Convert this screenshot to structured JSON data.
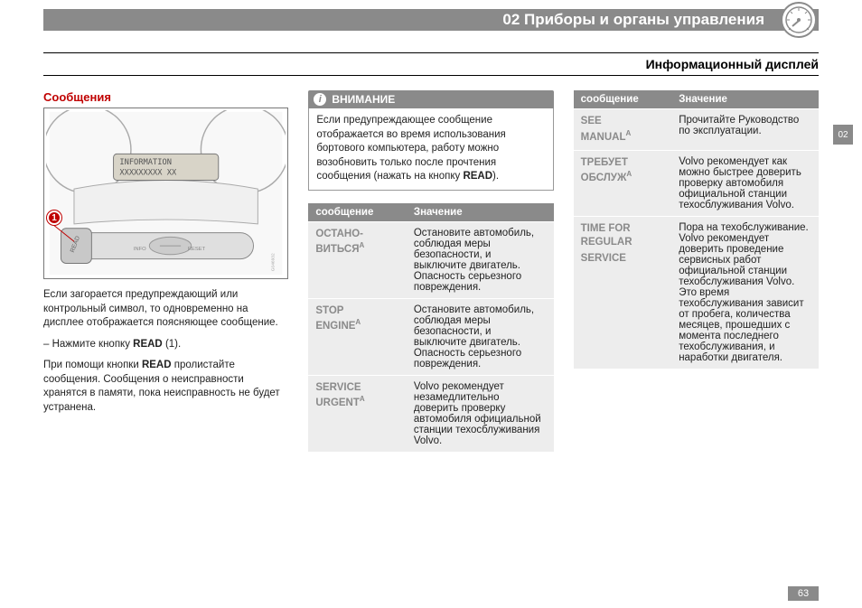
{
  "header": {
    "chapter": "02 Приборы и органы управления",
    "subheader": "Информационный дисплей"
  },
  "sideTab": "02",
  "pageNumber": "63",
  "column1": {
    "heading": "Сообщения",
    "badge": "1",
    "displayText": "INFORMATION",
    "para1": "Если загорается предупреждающий или контрольный символ, то одновременно на дисплее отображается поясняющее сообщение.",
    "bullet1_prefix": "–   Нажмите кнопку ",
    "bullet1_bold": "READ",
    "bullet1_suffix": " (1).",
    "para2_prefix": "При помощи кнопки ",
    "para2_bold": "READ",
    "para2_suffix": " пролистайте сообщения. Сообщения о неисправности хранятся в памяти, пока неисправность не будет устранена."
  },
  "notice": {
    "title": "ВНИМАНИЕ",
    "body_prefix": "Если предупреждающее сообщение отображается во время использования бортового компьютера, работу можно возобновить только после прочтения сообщения (нажать на кнопку ",
    "body_bold": "READ",
    "body_suffix": ")."
  },
  "table": {
    "col1_header": "сообщение",
    "col2_header": "Значение",
    "rows": [
      {
        "label": "ОСТАНО-\nВИТЬСЯ",
        "sup": "A",
        "value": "Остановите автомобиль, соблюдая меры безопасности, и выключите двигатель. Опасность серьезного повреждения."
      },
      {
        "label": "STOP\nENGINE",
        "sup": "A",
        "value": "Остановите автомобиль, соблюдая меры безопасности, и выключите двигатель. Опасность серьезного повреждения."
      },
      {
        "label": "SERVICE\nURGENT",
        "sup": "A",
        "value": "Volvo рекомендует незамедлительно доверить проверку автомобиля официальной станции техосблуживания Volvo."
      },
      {
        "label": "SEE\nMANUAL",
        "sup": "A",
        "value": "Прочитайте Руководство по эксплуатации."
      },
      {
        "label": "ТРЕБУЕТ\nОБСЛУЖ",
        "sup": "A",
        "value": "Volvo рекомендует как можно быстрее доверить проверку автомобиля официальной станции техосблуживания Volvo."
      },
      {
        "label": "TIME FOR\nREGULAR\nSERVICE",
        "sup": "",
        "value": "Пора на техобслуживание. Volvo рекомендует доверить проведение сервисных работ официальной станции техобслуживания Volvo. Это время техобслуживания зависит от пробега, количества месяцев, прошедших с момента последнего техобслуживания, и наработки двигателя."
      }
    ]
  }
}
